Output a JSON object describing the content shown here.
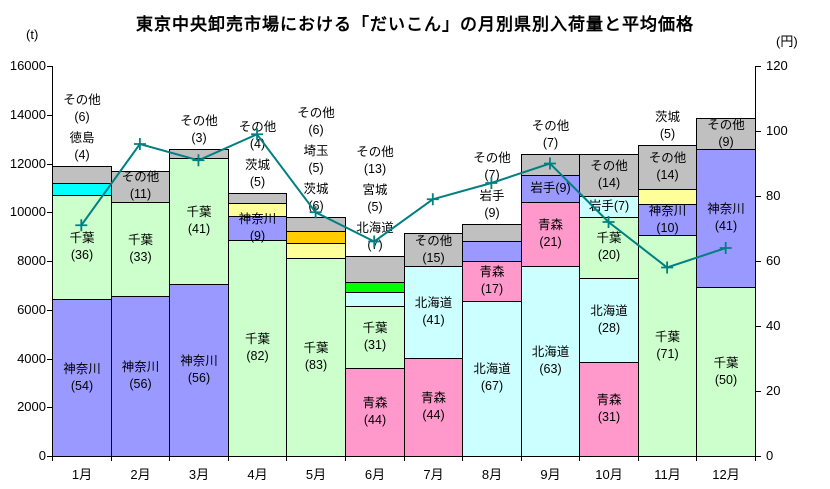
{
  "title": "東京中央卸売市場における「だいこん」の月別県別入荷量と平均価格",
  "axis_left_unit": "(t)",
  "axis_right_unit": "(円)",
  "chart_data": {
    "type": "bar",
    "stacked": true,
    "grid": false,
    "legend": "none",
    "categories": [
      "1月",
      "2月",
      "3月",
      "4月",
      "5月",
      "6月",
      "7月",
      "8月",
      "9月",
      "10月",
      "11月",
      "12月"
    ],
    "y_left": {
      "unit": "(t)",
      "min": 0,
      "max": 16000,
      "step": 2000,
      "ticks": [
        0,
        2000,
        4000,
        6000,
        8000,
        10000,
        12000,
        14000,
        16000
      ]
    },
    "y_right": {
      "unit": "(円)",
      "min": 0,
      "max": 120,
      "step": 20,
      "ticks": [
        0,
        20,
        40,
        60,
        80,
        100,
        120
      ]
    },
    "line_series": {
      "name": "平均価格",
      "axis": "right",
      "color": "#008080",
      "marker": "plus",
      "values": [
        71,
        96,
        91,
        99,
        75,
        66,
        79,
        84,
        90,
        72,
        58,
        64
      ]
    },
    "bar_totals_t": [
      11900,
      11700,
      12600,
      10800,
      9800,
      8200,
      9150,
      9500,
      12400,
      12400,
      12750,
      13850
    ],
    "months": [
      {
        "month": "1月",
        "total": 11900,
        "segments": [
          {
            "name": "神奈川",
            "pct": 54,
            "color": "#9999ff",
            "label": "inside"
          },
          {
            "name": "千葉",
            "pct": 36,
            "color": "#ccffcc",
            "label": "inside"
          },
          {
            "name": "徳島",
            "pct": 4,
            "color": "#00ffff",
            "label": "above"
          },
          {
            "name": "その他",
            "pct": 6,
            "color": "#c0c0c0",
            "label": "above"
          }
        ]
      },
      {
        "month": "2月",
        "total": 11700,
        "segments": [
          {
            "name": "神奈川",
            "pct": 56,
            "color": "#9999ff",
            "label": "inside"
          },
          {
            "name": "千葉",
            "pct": 33,
            "color": "#ccffcc",
            "label": "inside"
          },
          {
            "name": "その他",
            "pct": 11,
            "color": "#c0c0c0",
            "label": "inside"
          }
        ]
      },
      {
        "month": "3月",
        "total": 12600,
        "segments": [
          {
            "name": "神奈川",
            "pct": 56,
            "color": "#9999ff",
            "label": "inside"
          },
          {
            "name": "千葉",
            "pct": 41,
            "color": "#ccffcc",
            "label": "inside"
          },
          {
            "name": "その他",
            "pct": 3,
            "color": "#c0c0c0",
            "label": "above"
          }
        ]
      },
      {
        "month": "4月",
        "total": 10800,
        "segments": [
          {
            "name": "千葉",
            "pct": 82,
            "color": "#ccffcc",
            "label": "inside"
          },
          {
            "name": "神奈川",
            "pct": 9,
            "color": "#9999ff",
            "label": "inside"
          },
          {
            "name": "茨城",
            "pct": 5,
            "color": "#ffff99",
            "label": "above"
          },
          {
            "name": "その他",
            "pct": 4,
            "color": "#c0c0c0",
            "label": "above"
          }
        ]
      },
      {
        "month": "5月",
        "total": 9800,
        "segments": [
          {
            "name": "千葉",
            "pct": 83,
            "color": "#ccffcc",
            "label": "inside"
          },
          {
            "name": "茨城",
            "pct": 6,
            "color": "#ffff99",
            "label": "above"
          },
          {
            "name": "埼玉",
            "pct": 5,
            "color": "#ffcc00",
            "label": "above"
          },
          {
            "name": "その他",
            "pct": 6,
            "color": "#c0c0c0",
            "label": "above"
          }
        ]
      },
      {
        "month": "6月",
        "total": 8200,
        "segments": [
          {
            "name": "青森",
            "pct": 44,
            "color": "#ff99cc",
            "label": "inside"
          },
          {
            "name": "千葉",
            "pct": 31,
            "color": "#ccffcc",
            "label": "inside"
          },
          {
            "name": "北海道",
            "pct": 7,
            "color": "#ccffff",
            "label": "above"
          },
          {
            "name": "宮城",
            "pct": 5,
            "color": "#00ff00",
            "label": "above"
          },
          {
            "name": "その他",
            "pct": 13,
            "color": "#c0c0c0",
            "label": "above"
          }
        ]
      },
      {
        "month": "7月",
        "total": 9150,
        "segments": [
          {
            "name": "青森",
            "pct": 44,
            "color": "#ff99cc",
            "label": "inside"
          },
          {
            "name": "北海道",
            "pct": 41,
            "color": "#ccffff",
            "label": "inside"
          },
          {
            "name": "その他",
            "pct": 15,
            "color": "#c0c0c0",
            "label": "inside"
          }
        ]
      },
      {
        "month": "8月",
        "total": 9500,
        "segments": [
          {
            "name": "北海道",
            "pct": 67,
            "color": "#ccffff",
            "label": "inside"
          },
          {
            "name": "青森",
            "pct": 17,
            "color": "#ff99cc",
            "label": "inside"
          },
          {
            "name": "岩手",
            "pct": 9,
            "color": "#9999ff",
            "label": "above"
          },
          {
            "name": "その他",
            "pct": 7,
            "color": "#c0c0c0",
            "label": "above"
          }
        ]
      },
      {
        "month": "9月",
        "total": 12400,
        "segments": [
          {
            "name": "北海道",
            "pct": 63,
            "color": "#ccffff",
            "label": "inside"
          },
          {
            "name": "青森",
            "pct": 21,
            "color": "#ff99cc",
            "label": "inside"
          },
          {
            "name": "岩手",
            "pct": 9,
            "color": "#9999ff",
            "label": "inside",
            "oneline": true
          },
          {
            "name": "その他",
            "pct": 7,
            "color": "#c0c0c0",
            "label": "above"
          }
        ]
      },
      {
        "month": "10月",
        "total": 12400,
        "segments": [
          {
            "name": "青森",
            "pct": 31,
            "color": "#ff99cc",
            "label": "inside"
          },
          {
            "name": "北海道",
            "pct": 28,
            "color": "#ccffff",
            "label": "inside"
          },
          {
            "name": "千葉",
            "pct": 20,
            "color": "#ccffcc",
            "label": "inside"
          },
          {
            "name": "岩手",
            "pct": 7,
            "color": "#ccffff",
            "label": "inside",
            "oneline": true
          },
          {
            "name": "その他",
            "pct": 14,
            "color": "#c0c0c0",
            "label": "inside"
          }
        ]
      },
      {
        "month": "11月",
        "total": 12750,
        "segments": [
          {
            "name": "千葉",
            "pct": 71,
            "color": "#ccffcc",
            "label": "inside"
          },
          {
            "name": "神奈川",
            "pct": 10,
            "color": "#9999ff",
            "label": "inside"
          },
          {
            "name": "茨城",
            "pct": 5,
            "color": "#ffff99",
            "label": "above"
          },
          {
            "name": "その他",
            "pct": 14,
            "color": "#c0c0c0",
            "label": "inside"
          }
        ]
      },
      {
        "month": "12月",
        "total": 13850,
        "segments": [
          {
            "name": "千葉",
            "pct": 50,
            "color": "#ccffcc",
            "label": "inside"
          },
          {
            "name": "神奈川",
            "pct": 41,
            "color": "#9999ff",
            "label": "inside"
          },
          {
            "name": "その他",
            "pct": 9,
            "color": "#c0c0c0",
            "label": "inside"
          }
        ]
      }
    ]
  }
}
